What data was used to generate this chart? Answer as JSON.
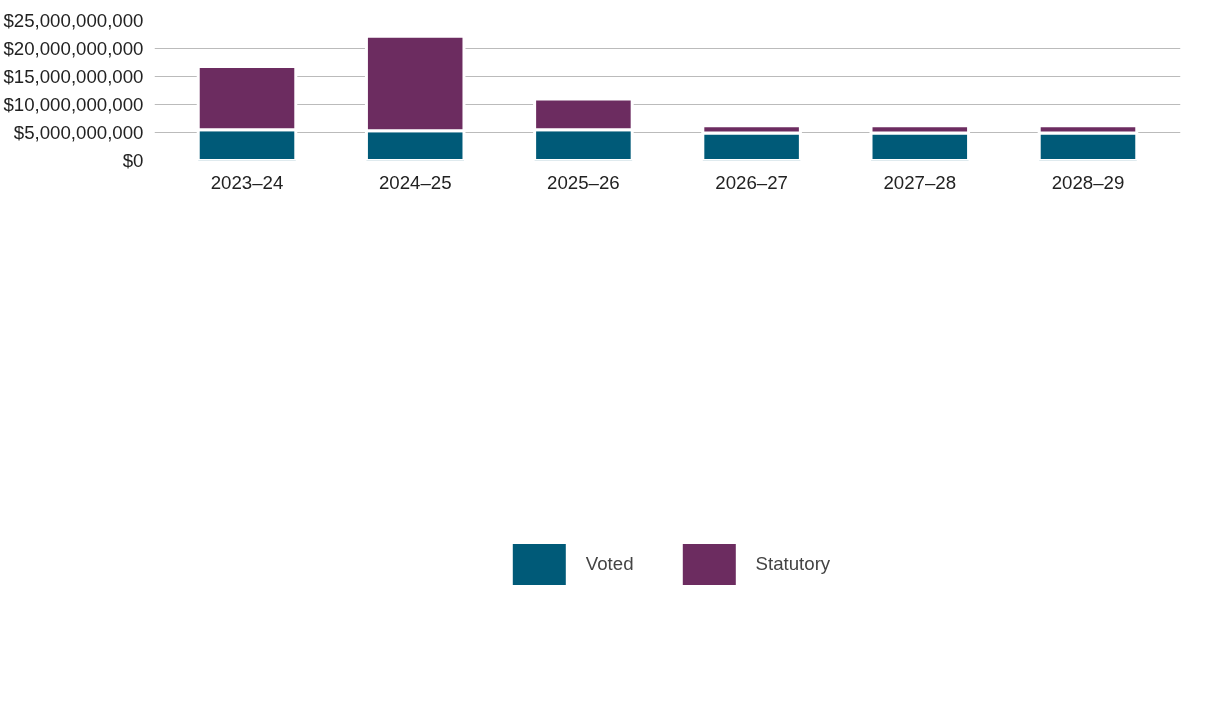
{
  "chart_data": {
    "type": "bar",
    "stacked": true,
    "categories": [
      "2023–24",
      "2024–25",
      "2025–26",
      "2026–27",
      "2027–28",
      "2028–29"
    ],
    "series": [
      {
        "name": "Voted",
        "color": "#005a78",
        "values": [
          5500000000,
          5300000000,
          5500000000,
          4900000000,
          4900000000,
          4900000000
        ]
      },
      {
        "name": "Statutory",
        "color": "#6c2c60",
        "values": [
          11300000000,
          16900000000,
          5500000000,
          1300000000,
          1300000000,
          1300000000
        ]
      }
    ],
    "ylim": [
      0,
      25000000000
    ],
    "yticks": [
      {
        "value": 0,
        "label": "$0"
      },
      {
        "value": 5000000000,
        "label": "$5,000,000,000"
      },
      {
        "value": 10000000000,
        "label": "$10,000,000,000"
      },
      {
        "value": 15000000000,
        "label": "$15,000,000,000"
      },
      {
        "value": 20000000000,
        "label": "$20,000,000,000"
      },
      {
        "value": 25000000000,
        "label": "$25,000,000,000"
      }
    ],
    "grid": "y",
    "legend": "bottom"
  }
}
